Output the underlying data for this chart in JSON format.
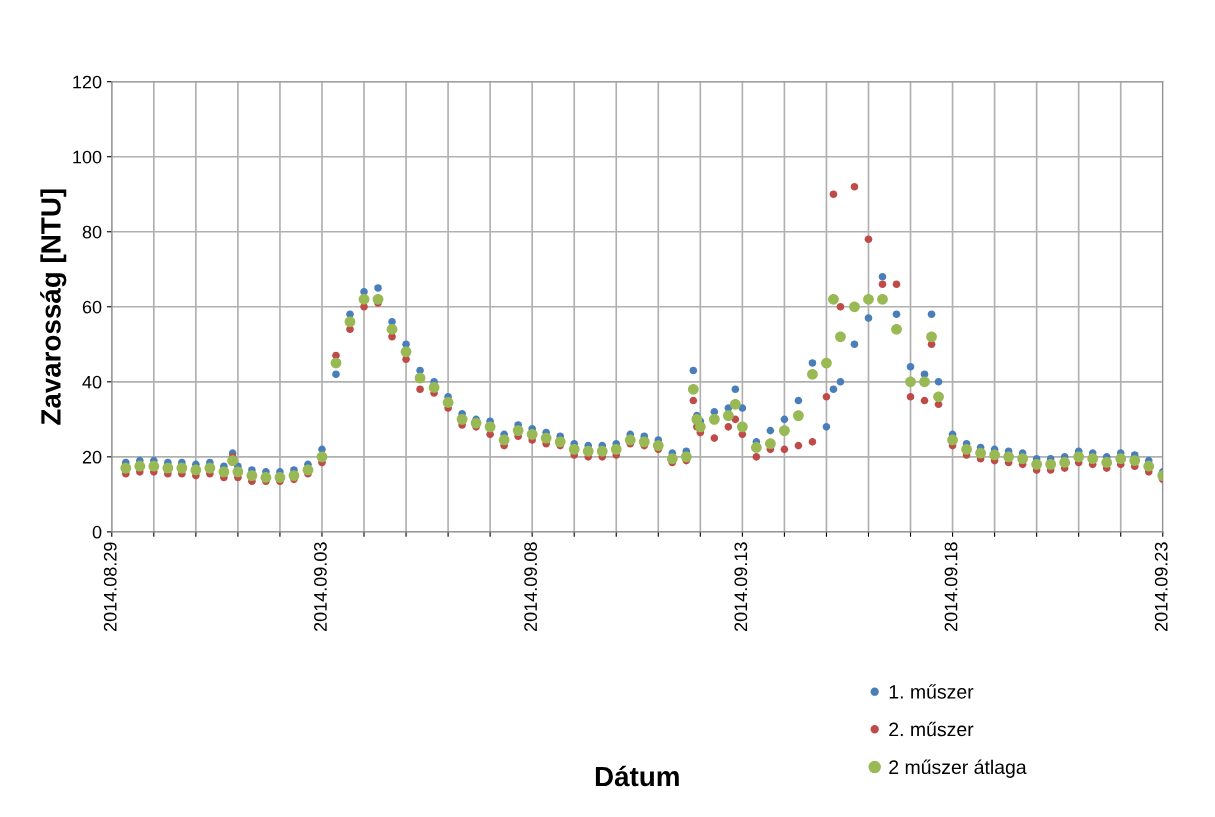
{
  "chart_data": {
    "type": "scatter",
    "xlabel": "Dátum",
    "ylabel": "Zavarosság [NTU]",
    "x": [
      "2014-08-29T08:00",
      "2014-08-29T16:00",
      "2014-08-30T00:00",
      "2014-08-30T08:00",
      "2014-08-30T16:00",
      "2014-08-31T00:00",
      "2014-08-31T08:00",
      "2014-08-31T16:00",
      "2014-08-31T21:00",
      "2014-09-01T00:00",
      "2014-09-01T08:00",
      "2014-09-01T16:00",
      "2014-09-02T00:00",
      "2014-09-02T08:00",
      "2014-09-02T16:00",
      "2014-09-03T00:00",
      "2014-09-03T08:00",
      "2014-09-03T16:00",
      "2014-09-04T00:00",
      "2014-09-04T08:00",
      "2014-09-04T16:00",
      "2014-09-05T00:00",
      "2014-09-05T08:00",
      "2014-09-05T16:00",
      "2014-09-06T00:00",
      "2014-09-06T08:00",
      "2014-09-06T16:00",
      "2014-09-07T00:00",
      "2014-09-07T08:00",
      "2014-09-07T16:00",
      "2014-09-08T00:00",
      "2014-09-08T08:00",
      "2014-09-08T16:00",
      "2014-09-09T00:00",
      "2014-09-09T08:00",
      "2014-09-09T16:00",
      "2014-09-10T00:00",
      "2014-09-10T08:00",
      "2014-09-10T16:00",
      "2014-09-11T00:00",
      "2014-09-11T08:00",
      "2014-09-11T16:00",
      "2014-09-11T20:00",
      "2014-09-11T22:00",
      "2014-09-12T00:00",
      "2014-09-12T08:00",
      "2014-09-12T16:00",
      "2014-09-12T20:00",
      "2014-09-13T00:00",
      "2014-09-13T08:00",
      "2014-09-13T16:00",
      "2014-09-14T00:00",
      "2014-09-14T08:00",
      "2014-09-14T16:00",
      "2014-09-15T00:00",
      "2014-09-15T04:00",
      "2014-09-15T08:00",
      "2014-09-15T16:00",
      "2014-09-16T00:00",
      "2014-09-16T08:00",
      "2014-09-16T16:00",
      "2014-09-17T00:00",
      "2014-09-17T08:00",
      "2014-09-17T12:00",
      "2014-09-17T16:00",
      "2014-09-18T00:00",
      "2014-09-18T08:00",
      "2014-09-18T16:00",
      "2014-09-19T00:00",
      "2014-09-19T08:00",
      "2014-09-19T16:00",
      "2014-09-20T00:00",
      "2014-09-20T08:00",
      "2014-09-20T16:00",
      "2014-09-21T00:00",
      "2014-09-21T08:00",
      "2014-09-21T16:00",
      "2014-09-22T00:00",
      "2014-09-22T08:00",
      "2014-09-22T16:00",
      "2014-09-23T00:00"
    ],
    "series": [
      {
        "name": "1. műszer",
        "color": "#4a7ebb",
        "values": [
          18.5,
          19,
          19,
          18.5,
          18.5,
          18,
          18.5,
          17.5,
          21,
          17.5,
          16.5,
          16,
          16,
          16.5,
          18,
          22,
          42,
          58,
          64,
          65,
          56,
          50,
          43,
          40,
          36,
          31.5,
          30,
          29.5,
          26,
          28.5,
          27.5,
          26.5,
          25.5,
          23.5,
          23,
          23,
          23.5,
          26,
          25.5,
          24.5,
          21,
          21.5,
          43,
          31,
          29.5,
          32,
          33,
          38,
          33,
          24,
          27,
          30,
          35,
          45,
          28,
          38,
          40,
          50,
          57,
          68,
          58,
          44,
          42,
          58,
          40,
          26,
          23.5,
          22.5,
          22,
          21.5,
          21,
          19.5,
          19.5,
          20,
          21.5,
          21,
          20,
          21,
          20.5,
          19,
          16
        ]
      },
      {
        "name": "2. műszer",
        "color": "#be4b48",
        "values": [
          15.5,
          16,
          16,
          15.5,
          15.5,
          15,
          15.5,
          14.5,
          20,
          14.5,
          13.5,
          13.5,
          13.5,
          14,
          15.5,
          18.5,
          47,
          54,
          60,
          61,
          52,
          46,
          38,
          37,
          33,
          28.5,
          28,
          26,
          23,
          25.5,
          24.5,
          23.5,
          23,
          20.5,
          20,
          20,
          20.5,
          23.5,
          23,
          22,
          18.5,
          19,
          35,
          28,
          26.5,
          25,
          28,
          30,
          26,
          20,
          22,
          22,
          23,
          24,
          36,
          90,
          60,
          92,
          78,
          66,
          66,
          36,
          35,
          50,
          34,
          23,
          20.5,
          19.5,
          19,
          18.5,
          18,
          16.5,
          16.5,
          17,
          18.5,
          18,
          17,
          18,
          17.5,
          16,
          14
        ]
      },
      {
        "name": "2 műszer átlaga",
        "color": "#98b954",
        "values": [
          17,
          17.5,
          17.5,
          17,
          17,
          16.5,
          17,
          16,
          19,
          16,
          15,
          14.5,
          14.5,
          15,
          16.5,
          20,
          45,
          56,
          62,
          62,
          54,
          48,
          41,
          38.5,
          34.5,
          30,
          29,
          28,
          24.5,
          27,
          26,
          25,
          24,
          22,
          21.5,
          21.5,
          22,
          24.5,
          24,
          23,
          19.5,
          20,
          38,
          30,
          28,
          30,
          31,
          34,
          28,
          22.5,
          23.5,
          27,
          31,
          42,
          45,
          62,
          52,
          60,
          62,
          62,
          54,
          40,
          40,
          52,
          36,
          24.5,
          22,
          21,
          20.5,
          20,
          19.5,
          18,
          18,
          18.5,
          20,
          19.5,
          18.5,
          19.5,
          19,
          17.5,
          15
        ]
      }
    ],
    "xlim": [
      "2014-08-29",
      "2014-09-23"
    ],
    "xticks": [
      {
        "value": "2014-08-29",
        "label": "2014.08.29"
      },
      {
        "value": "2014-08-30",
        "label": null
      },
      {
        "value": "2014-08-31",
        "label": null
      },
      {
        "value": "2014-09-01",
        "label": null
      },
      {
        "value": "2014-09-02",
        "label": null
      },
      {
        "value": "2014-09-03",
        "label": "2014.09.03"
      },
      {
        "value": "2014-09-04",
        "label": null
      },
      {
        "value": "2014-09-05",
        "label": null
      },
      {
        "value": "2014-09-06",
        "label": null
      },
      {
        "value": "2014-09-07",
        "label": null
      },
      {
        "value": "2014-09-08",
        "label": "2014.09.08"
      },
      {
        "value": "2014-09-09",
        "label": null
      },
      {
        "value": "2014-09-10",
        "label": null
      },
      {
        "value": "2014-09-11",
        "label": null
      },
      {
        "value": "2014-09-12",
        "label": null
      },
      {
        "value": "2014-09-13",
        "label": "2014.09.13"
      },
      {
        "value": "2014-09-14",
        "label": null
      },
      {
        "value": "2014-09-15",
        "label": null
      },
      {
        "value": "2014-09-16",
        "label": null
      },
      {
        "value": "2014-09-17",
        "label": null
      },
      {
        "value": "2014-09-18",
        "label": "2014.09.18"
      },
      {
        "value": "2014-09-19",
        "label": null
      },
      {
        "value": "2014-09-20",
        "label": null
      },
      {
        "value": "2014-09-21",
        "label": null
      },
      {
        "value": "2014-09-22",
        "label": null
      },
      {
        "value": "2014-09-23",
        "label": "2014.09.23"
      }
    ],
    "ylim": [
      0,
      120
    ],
    "yticks": [
      0,
      20,
      40,
      60,
      80,
      100,
      120
    ],
    "grid": true,
    "legend": "bottom right",
    "marker": "circle"
  }
}
